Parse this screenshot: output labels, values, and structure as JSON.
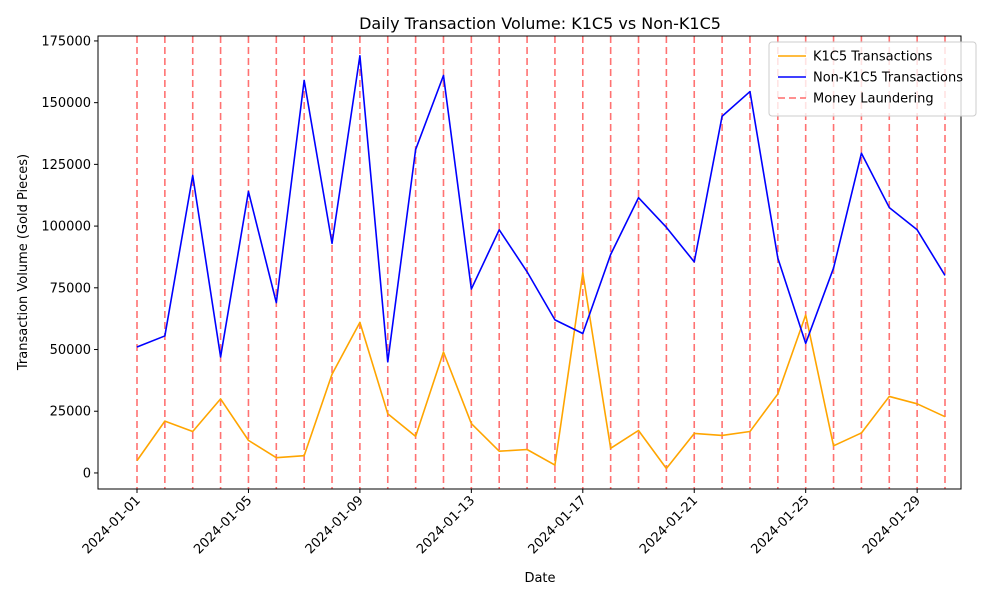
{
  "chart_data": {
    "type": "line",
    "title": "Daily Transaction Volume: K1C5 vs Non-K1C5",
    "xlabel": "Date",
    "ylabel": "Transaction Volume (Gold Pieces)",
    "x": [
      "2024-01-01",
      "2024-01-02",
      "2024-01-03",
      "2024-01-04",
      "2024-01-05",
      "2024-01-06",
      "2024-01-07",
      "2024-01-08",
      "2024-01-09",
      "2024-01-10",
      "2024-01-11",
      "2024-01-12",
      "2024-01-13",
      "2024-01-14",
      "2024-01-15",
      "2024-01-16",
      "2024-01-17",
      "2024-01-18",
      "2024-01-19",
      "2024-01-20",
      "2024-01-21",
      "2024-01-22",
      "2024-01-23",
      "2024-01-24",
      "2024-01-25",
      "2024-01-26",
      "2024-01-27",
      "2024-01-28",
      "2024-01-29",
      "2024-01-30"
    ],
    "x_ticks": [
      "2024-01-01",
      "2024-01-05",
      "2024-01-09",
      "2024-01-13",
      "2024-01-17",
      "2024-01-21",
      "2024-01-25",
      "2024-01-29"
    ],
    "y_ticks": [
      0,
      25000,
      50000,
      75000,
      100000,
      125000,
      150000,
      175000
    ],
    "ylim": [
      -6500,
      177000
    ],
    "grid": false,
    "legend_position": "top-right",
    "series": [
      {
        "name": "K1C5 Transactions",
        "color": "#ffa500",
        "values": [
          5000,
          21000,
          16800,
          30000,
          13200,
          6200,
          7000,
          40000,
          61000,
          24000,
          14800,
          49000,
          20000,
          8800,
          9500,
          3200,
          81000,
          10000,
          17200,
          1800,
          16000,
          15200,
          16800,
          32000,
          64000,
          11000,
          16200,
          31000,
          28000,
          22800
        ]
      },
      {
        "name": "Non-K1C5 Transactions",
        "color": "#0000ff",
        "values": [
          51000,
          55500,
          120500,
          47000,
          114000,
          69000,
          159000,
          93000,
          169000,
          45000,
          131000,
          161000,
          74500,
          98500,
          81500,
          62000,
          56500,
          88500,
          111500,
          99500,
          85500,
          144500,
          154500,
          87000,
          52500,
          83000,
          129500,
          107500,
          98500,
          80000
        ]
      }
    ],
    "markers": {
      "name": "Money Laundering",
      "color": "#ff6b6b",
      "style": "dashed",
      "dates": [
        "2024-01-01",
        "2024-01-02",
        "2024-01-03",
        "2024-01-04",
        "2024-01-05",
        "2024-01-06",
        "2024-01-07",
        "2024-01-08",
        "2024-01-09",
        "2024-01-10",
        "2024-01-11",
        "2024-01-12",
        "2024-01-13",
        "2024-01-14",
        "2024-01-15",
        "2024-01-16",
        "2024-01-17",
        "2024-01-18",
        "2024-01-19",
        "2024-01-20",
        "2024-01-21",
        "2024-01-22",
        "2024-01-23",
        "2024-01-24",
        "2024-01-25",
        "2024-01-26",
        "2024-01-27",
        "2024-01-28",
        "2024-01-29",
        "2024-01-30"
      ]
    }
  }
}
